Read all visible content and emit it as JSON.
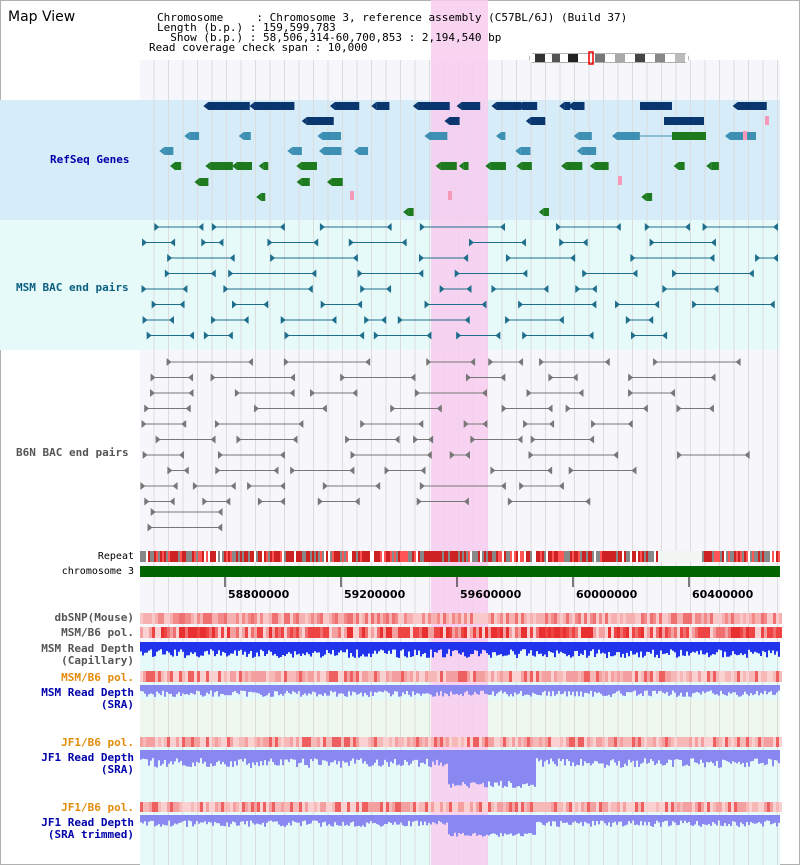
{
  "header": {
    "view_title": "Map View",
    "chromosome_line": "Chromosome     : Chromosome 3, reference assembly (C57BL/6J) (Build 37)",
    "length_line": "Length (b.p.) : 159,599,783",
    "show_line": "  Show (b.p.) : 58,506,314-60,700,853 : 2,194,540 bp",
    "coverage_line": "Read coverage check span : 10,000"
  },
  "tracks": {
    "refseq_label": "RefSeq Genes",
    "msm_bac_label": "MSM BAC end pairs",
    "b6n_bac_label": "B6N BAC end pairs",
    "repeat_label": "Repeat",
    "chromosome_label": "chromosome 3",
    "dbsnp_label": "dbSNP(Mouse)",
    "msm_b6_pol_label": "MSM/B6 pol.",
    "msm_depth_cap_label_1": "MSM Read Depth",
    "msm_depth_cap_label_2": "(Capillary)",
    "msm_b6_pol2_label": "MSM/B6 pol.",
    "msm_depth_sra_label_1": "MSM Read Depth",
    "msm_depth_sra_label_2": "(SRA)",
    "jf1_b6_pol_label": "JF1/B6 pol.",
    "jf1_depth_sra_label_1": "JF1 Read Depth",
    "jf1_depth_sra_label_2": "(SRA)",
    "jf1_b6_pol2_label": "JF1/B6 pol.",
    "jf1_depth_trim_label_1": "JF1 Read Depth",
    "jf1_depth_trim_label_2": "(SRA trimmed)"
  },
  "axis": {
    "ticks": [
      "58800000",
      "59200000",
      "59600000",
      "60000000",
      "60400000"
    ]
  },
  "colors": {
    "refseq_bg": "#d6ecf8",
    "bac_bg": "#e6fafa",
    "highlight": "#f8cdee",
    "gene_dark": "#0a3670",
    "gene_mid": "#3d8fb3",
    "gene_green": "#1e7a1e",
    "gene_pink": "#f59ab8",
    "msm_bac": "#1e6e8c",
    "b6n_bac": "#777777",
    "chromosome": "#006400",
    "depth_blue": "#2233ee",
    "depth_light": "#8888f0",
    "label_blue": "#0000aa",
    "label_msm": "#0a5f80",
    "label_orange": "#e38c0c",
    "label_gray": "#555555"
  }
}
